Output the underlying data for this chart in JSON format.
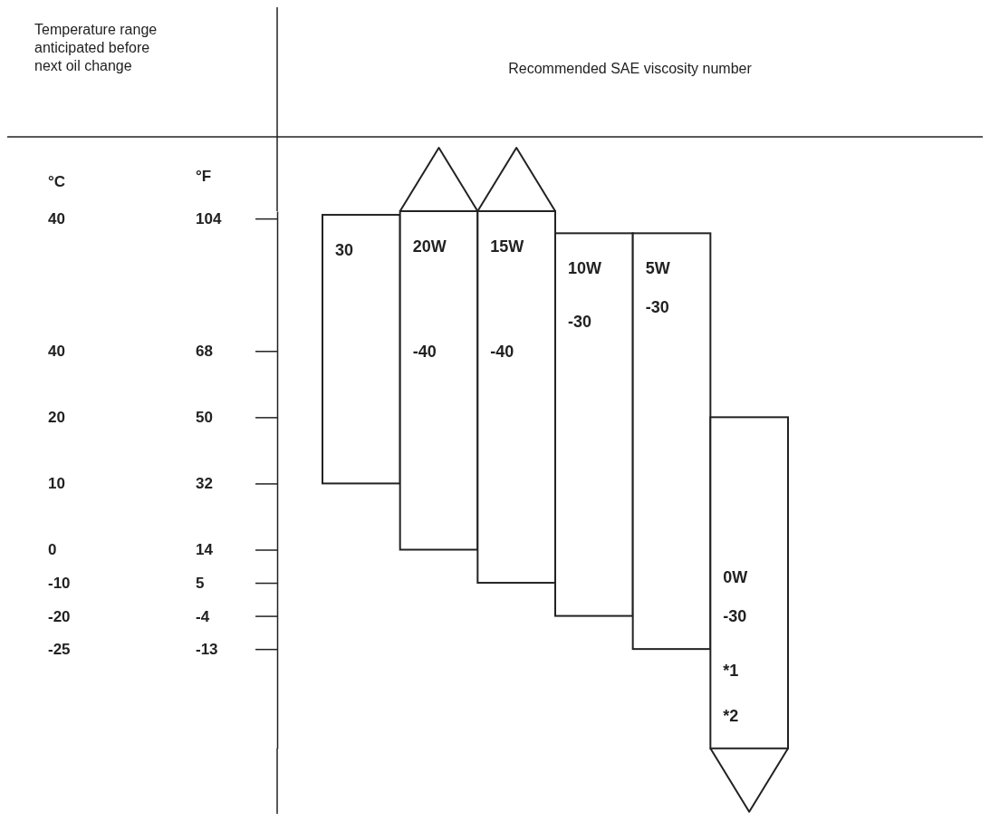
{
  "chart_data": {
    "type": "bar",
    "title": "Recommended SAE viscosity number",
    "ylabel": "°F",
    "categories": [
      "30",
      "20W",
      "15W",
      "10W",
      "5W",
      "0W"
    ],
    "base": [
      32,
      14,
      5,
      -4,
      -13,
      -40
    ],
    "values": [
      73,
      92,
      101,
      104,
      113,
      90
    ],
    "color": "#ffffff",
    "ylim": [
      -40,
      106
    ],
    "yticks": [
      104,
      68,
      50,
      32,
      14,
      5,
      -4,
      -13
    ],
    "grid": false,
    "annotations": [
      "Temperature range anticipated before next oil change",
      "-40",
      "-40",
      "-30",
      "-30",
      "-30",
      "*1",
      "*2",
      "°C",
      "40",
      "40",
      "20",
      "10",
      "0",
      "-10",
      "-20",
      "-25"
    ]
  }
}
